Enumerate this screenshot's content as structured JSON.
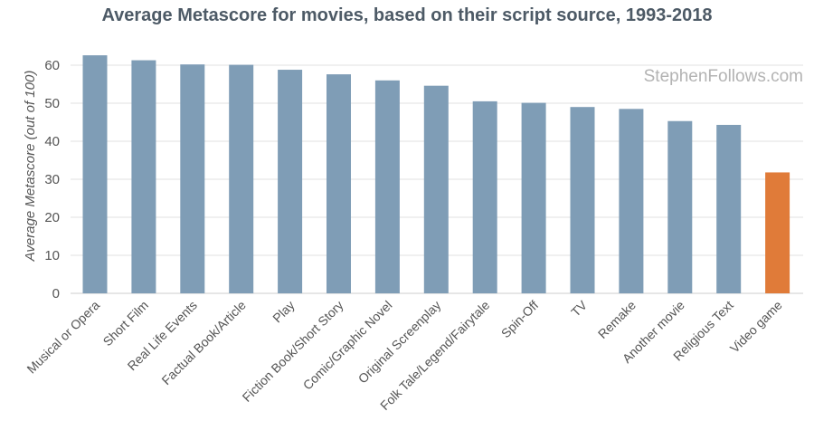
{
  "chart_data": {
    "type": "bar",
    "title": "Average Metascore for movies, based on their script source, 1993-2018",
    "watermark": "StephenFollows.com",
    "ylabel": "Average Metascore (out of 100)",
    "xlabel": "",
    "ylim": [
      0,
      65
    ],
    "yticks": [
      0,
      10,
      20,
      30,
      40,
      50,
      60
    ],
    "grid": true,
    "categories": [
      "Musical or Opera",
      "Short Film",
      "Real Life Events",
      "Factual Book/Article",
      "Play",
      "Fiction Book/Short Story",
      "Comic/Graphic Novel",
      "Original Screenplay",
      "Folk Tale/Legend/Fairytale",
      "Spin-Off",
      "TV",
      "Remake",
      "Another movie",
      "Religious Text",
      "Video game"
    ],
    "values": [
      62.6,
      61.3,
      60.2,
      60.1,
      58.8,
      57.6,
      56.0,
      54.6,
      50.5,
      50.1,
      49.0,
      48.5,
      45.3,
      44.3,
      31.8
    ],
    "colors": {
      "default": "#7f9db6",
      "highlight": "#e07b39"
    },
    "highlight_category": "Video game"
  }
}
